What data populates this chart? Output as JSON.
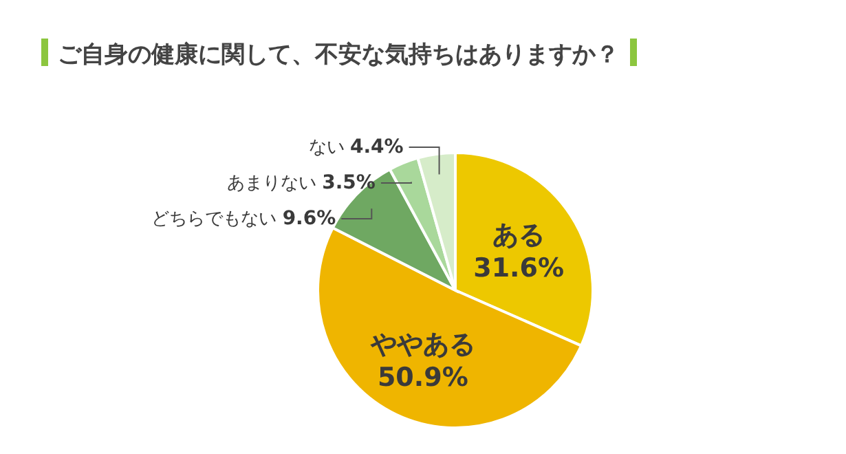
{
  "chart_data": {
    "type": "pie",
    "title": "ご自身の健康に関して、不安な気持ちはありますか？",
    "categories": [
      "ある",
      "ややある",
      "どちらでもない",
      "あまりない",
      "ない"
    ],
    "values": [
      31.6,
      50.9,
      9.6,
      3.5,
      4.4
    ],
    "value_labels": [
      "31.6%",
      "50.9%",
      "9.6%",
      "3.5%",
      "4.4%"
    ],
    "colors": [
      "#edc800",
      "#efb500",
      "#6fa862",
      "#a9d89b",
      "#d6ecc9"
    ]
  }
}
